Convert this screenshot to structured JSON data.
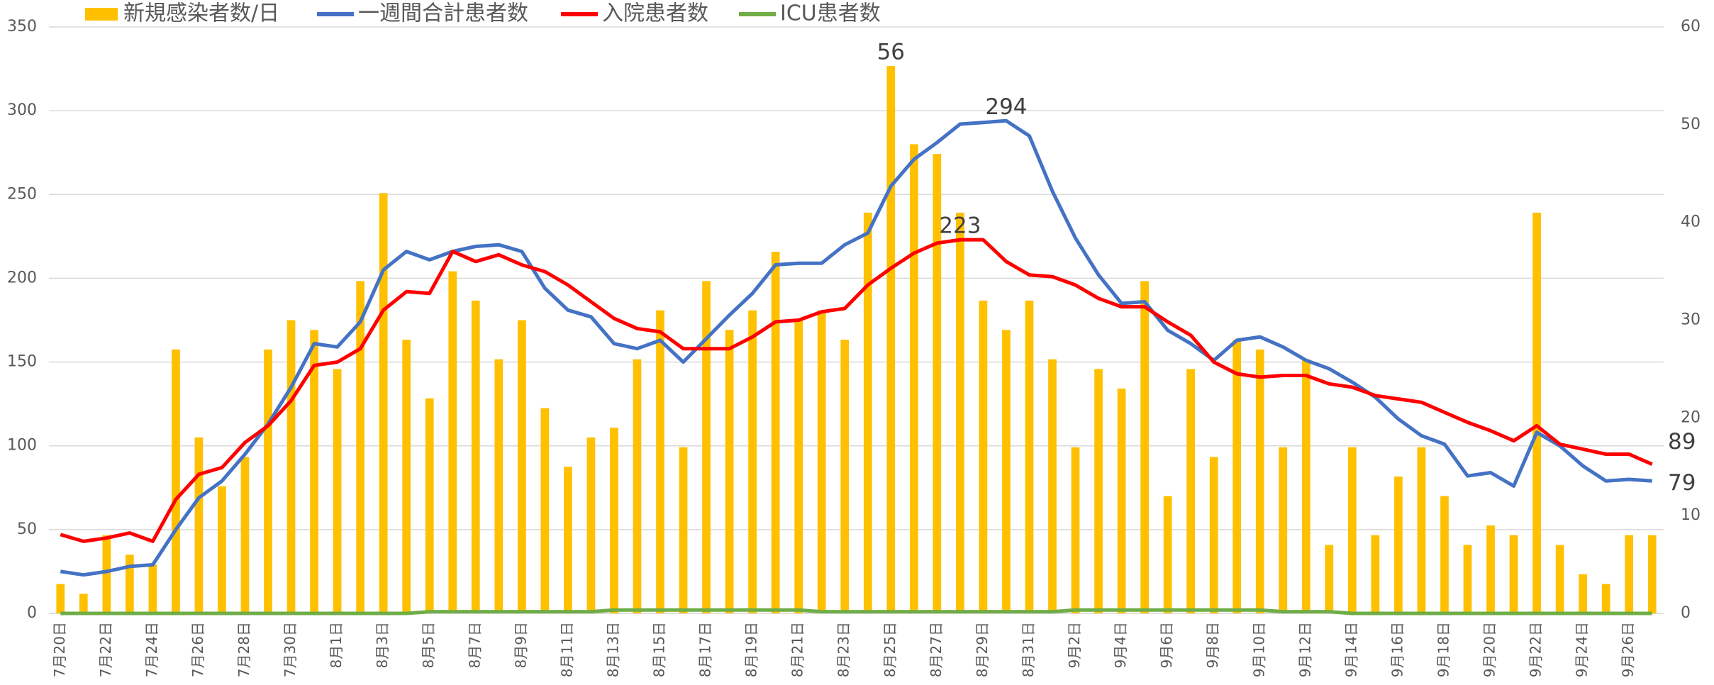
{
  "chart_data": {
    "type": "combo",
    "categories": [
      "7月20日",
      null,
      "7月22日",
      null,
      "7月24日",
      null,
      "7月26日",
      null,
      "7月28日",
      null,
      "7月30日",
      null,
      "8月1日",
      null,
      "8月3日",
      null,
      "8月5日",
      null,
      "8月7日",
      null,
      "8月9日",
      null,
      "8月11日",
      null,
      "8月13日",
      null,
      "8月15日",
      null,
      "8月17日",
      null,
      "8月19日",
      null,
      "8月21日",
      null,
      "8月23日",
      null,
      "8月25日",
      null,
      "8月27日",
      null,
      "8月29日",
      null,
      "8月31日",
      null,
      "9月2日",
      null,
      "9月4日",
      null,
      "9月6日",
      null,
      "9月8日",
      null,
      "9月10日",
      null,
      "9月12日",
      null,
      "9月14日",
      null,
      "9月16日",
      null,
      "9月18日",
      null,
      "9月20日",
      null,
      "9月22日",
      null,
      "9月24日",
      null,
      "9月26日",
      null
    ],
    "series": [
      {
        "name": "新規感染者数/日",
        "type": "bar",
        "axis": "y2",
        "color": "#ffc000",
        "values": [
          3,
          2,
          8,
          6,
          5,
          27,
          18,
          13,
          16,
          27,
          30,
          29,
          25,
          34,
          43,
          28,
          22,
          35,
          32,
          26,
          30,
          21,
          15,
          18,
          19,
          26,
          31,
          17,
          34,
          29,
          31,
          37,
          30,
          31,
          28,
          41,
          56,
          48,
          47,
          41,
          32,
          29,
          32,
          26,
          17,
          25,
          23,
          34,
          12,
          25,
          16,
          28,
          27,
          17,
          26,
          7,
          17,
          8,
          14,
          17,
          12,
          7,
          9,
          8,
          41,
          7,
          4,
          3,
          8,
          8
        ],
        "value_labels": [
          null,
          null,
          null,
          null,
          null,
          null,
          null,
          null,
          null,
          null,
          null,
          null,
          null,
          null,
          null,
          null,
          null,
          null,
          null,
          null,
          null,
          null,
          null,
          null,
          null,
          null,
          null,
          null,
          null,
          null,
          null,
          null,
          null,
          null,
          null,
          null,
          "56",
          null,
          null,
          null,
          null,
          null,
          null,
          null,
          null,
          null,
          null,
          null,
          null,
          null,
          null,
          null,
          null,
          null,
          null,
          null,
          null,
          null,
          null,
          null,
          null,
          null,
          null,
          null,
          null,
          null,
          null,
          null,
          null,
          null
        ]
      },
      {
        "name": "一週間合計患者数",
        "type": "line",
        "color": "#4472c4",
        "values": [
          25,
          23,
          25,
          28,
          29,
          50,
          69,
          79,
          95,
          113,
          135,
          161,
          159,
          174,
          205,
          216,
          211,
          216,
          219,
          220,
          216,
          194,
          181,
          177,
          161,
          158,
          163,
          150,
          164,
          178,
          191,
          208,
          209,
          209,
          220,
          227,
          255,
          271,
          281,
          292,
          293,
          294,
          285,
          252,
          224,
          202,
          185,
          186,
          169,
          161,
          151,
          163,
          165,
          159,
          151,
          146,
          138,
          129,
          116,
          106,
          101,
          82,
          84,
          76,
          108,
          100,
          88,
          79,
          80,
          79
        ],
        "value_labels": [
          null,
          null,
          null,
          null,
          null,
          null,
          null,
          null,
          null,
          null,
          null,
          null,
          null,
          null,
          null,
          null,
          null,
          null,
          null,
          null,
          null,
          null,
          null,
          null,
          null,
          null,
          null,
          null,
          null,
          null,
          null,
          null,
          null,
          null,
          null,
          null,
          null,
          null,
          null,
          null,
          null,
          "294",
          null,
          null,
          null,
          null,
          null,
          null,
          null,
          null,
          null,
          null,
          null,
          null,
          null,
          null,
          null,
          null,
          null,
          null,
          null,
          null,
          null,
          null,
          null,
          null,
          null,
          null,
          null,
          "79"
        ]
      },
      {
        "name": "入院患者数",
        "type": "line",
        "color": "#ff0000",
        "values": [
          47,
          43,
          45,
          48,
          43,
          68,
          83,
          87,
          102,
          112,
          127,
          148,
          150,
          158,
          181,
          192,
          191,
          216,
          210,
          214,
          208,
          204,
          196,
          186,
          176,
          170,
          168,
          158,
          158,
          158,
          165,
          174,
          175,
          180,
          182,
          196,
          206,
          215,
          221,
          223,
          223,
          210,
          202,
          201,
          196,
          188,
          183,
          183,
          174,
          166,
          150,
          143,
          141,
          142,
          142,
          137,
          135,
          130,
          128,
          126,
          120,
          114,
          109,
          103,
          112,
          101,
          98,
          95,
          95,
          89
        ],
        "value_labels": [
          null,
          null,
          null,
          null,
          null,
          null,
          null,
          null,
          null,
          null,
          null,
          null,
          null,
          null,
          null,
          null,
          null,
          null,
          null,
          null,
          null,
          null,
          null,
          null,
          null,
          null,
          null,
          null,
          null,
          null,
          null,
          null,
          null,
          null,
          null,
          null,
          null,
          null,
          null,
          "223",
          null,
          null,
          null,
          null,
          null,
          null,
          null,
          null,
          null,
          null,
          null,
          null,
          null,
          null,
          null,
          null,
          null,
          null,
          null,
          null,
          null,
          null,
          null,
          null,
          null,
          null,
          null,
          null,
          null,
          "89"
        ]
      },
      {
        "name": "ICU患者数",
        "type": "line",
        "color": "#70ad47",
        "values": [
          0,
          0,
          0,
          0,
          0,
          0,
          0,
          0,
          0,
          0,
          0,
          0,
          0,
          0,
          0,
          0,
          1,
          1,
          1,
          1,
          1,
          1,
          1,
          1,
          2,
          2,
          2,
          2,
          2,
          2,
          2,
          2,
          2,
          1,
          1,
          1,
          1,
          1,
          1,
          1,
          1,
          1,
          1,
          1,
          2,
          2,
          2,
          2,
          2,
          2,
          2,
          2,
          2,
          1,
          1,
          1,
          0,
          0,
          0,
          0,
          0,
          0,
          0,
          0,
          0,
          0,
          0,
          0,
          0,
          0
        ]
      }
    ],
    "ylim": [
      0,
      350
    ],
    "yticks": [
      0,
      50,
      100,
      150,
      200,
      250,
      300,
      350
    ],
    "y2lim": [
      0,
      60
    ],
    "y2ticks": [
      0,
      10,
      20,
      30,
      40,
      50,
      60
    ],
    "grid": true,
    "legend": "top-left"
  }
}
